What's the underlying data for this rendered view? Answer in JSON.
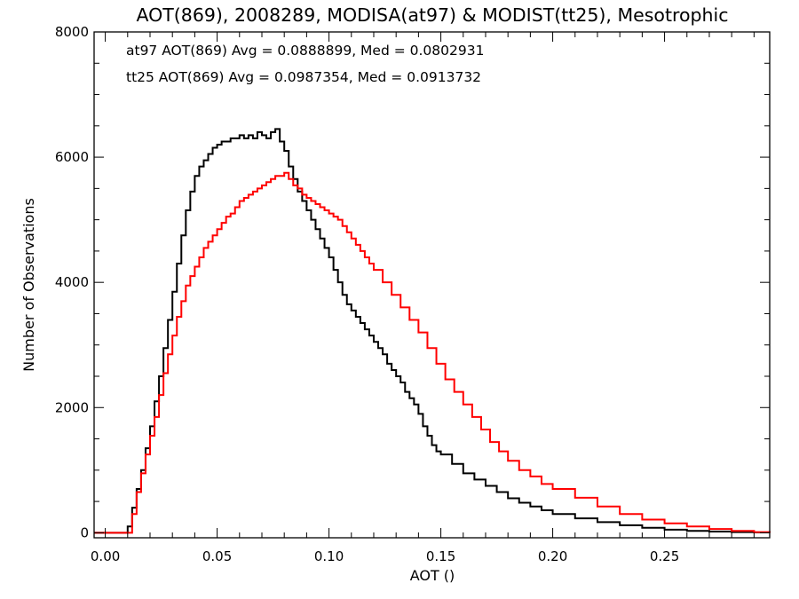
{
  "chart_data": {
    "type": "line",
    "title": "AOT(869), 2008289, MODISA(at97) & MODIST(tt25), Mesotrophic",
    "xlabel": "AOT ()",
    "ylabel": "Number of Observations",
    "xlim": [
      -0.005,
      0.297
    ],
    "ylim": [
      -80,
      8000
    ],
    "x_ticks": [
      0.0,
      0.05,
      0.1,
      0.15,
      0.2,
      0.25
    ],
    "x_tick_labels": [
      "0.00",
      "0.05",
      "0.10",
      "0.15",
      "0.20",
      "0.25"
    ],
    "y_ticks": [
      0,
      2000,
      4000,
      6000,
      8000
    ],
    "y_tick_labels": [
      "0",
      "2000",
      "4000",
      "6000",
      "8000"
    ],
    "grid": false,
    "step": true,
    "annotations": [
      {
        "text": "at97 AOT(869) Avg = 0.0888899, Med = 0.0802931",
        "color": "#000000"
      },
      {
        "text": "tt25 AOT(869) Avg = 0.0987354, Med = 0.0913732",
        "color": "#ff0000"
      }
    ],
    "series": [
      {
        "color": "#000000",
        "x": [
          -0.005,
          0.009,
          0.01,
          0.012,
          0.014,
          0.016,
          0.018,
          0.02,
          0.022,
          0.024,
          0.026,
          0.028,
          0.03,
          0.032,
          0.034,
          0.036,
          0.038,
          0.04,
          0.042,
          0.044,
          0.046,
          0.048,
          0.05,
          0.052,
          0.054,
          0.056,
          0.058,
          0.06,
          0.062,
          0.064,
          0.066,
          0.068,
          0.07,
          0.072,
          0.074,
          0.076,
          0.078,
          0.08,
          0.082,
          0.084,
          0.086,
          0.088,
          0.09,
          0.092,
          0.094,
          0.096,
          0.098,
          0.1,
          0.102,
          0.104,
          0.106,
          0.108,
          0.11,
          0.112,
          0.114,
          0.116,
          0.118,
          0.12,
          0.122,
          0.124,
          0.126,
          0.128,
          0.13,
          0.132,
          0.134,
          0.136,
          0.138,
          0.14,
          0.142,
          0.144,
          0.146,
          0.148,
          0.15,
          0.155,
          0.16,
          0.165,
          0.17,
          0.175,
          0.18,
          0.185,
          0.19,
          0.195,
          0.2,
          0.21,
          0.22,
          0.23,
          0.24,
          0.25,
          0.26,
          0.27,
          0.28,
          0.29,
          0.297
        ],
        "y": [
          0,
          0,
          100,
          400,
          700,
          1000,
          1350,
          1700,
          2100,
          2500,
          2950,
          3400,
          3850,
          4300,
          4750,
          5150,
          5450,
          5700,
          5850,
          5950,
          6050,
          6150,
          6200,
          6250,
          6250,
          6300,
          6300,
          6350,
          6300,
          6350,
          6300,
          6400,
          6350,
          6300,
          6400,
          6450,
          6250,
          6100,
          5850,
          5650,
          5450,
          5300,
          5150,
          5000,
          4850,
          4700,
          4550,
          4400,
          4200,
          4000,
          3800,
          3650,
          3550,
          3450,
          3350,
          3250,
          3150,
          3050,
          2950,
          2850,
          2700,
          2600,
          2500,
          2400,
          2250,
          2150,
          2050,
          1900,
          1700,
          1550,
          1400,
          1300,
          1250,
          1100,
          950,
          850,
          750,
          650,
          550,
          480,
          420,
          360,
          300,
          230,
          170,
          120,
          80,
          50,
          30,
          20,
          10,
          5,
          0
        ]
      },
      {
        "color": "#ff0000",
        "x": [
          -0.005,
          0.01,
          0.012,
          0.014,
          0.016,
          0.018,
          0.02,
          0.022,
          0.024,
          0.026,
          0.028,
          0.03,
          0.032,
          0.034,
          0.036,
          0.038,
          0.04,
          0.042,
          0.044,
          0.046,
          0.048,
          0.05,
          0.052,
          0.054,
          0.056,
          0.058,
          0.06,
          0.062,
          0.064,
          0.066,
          0.068,
          0.07,
          0.072,
          0.074,
          0.076,
          0.078,
          0.08,
          0.082,
          0.084,
          0.086,
          0.088,
          0.09,
          0.092,
          0.094,
          0.096,
          0.098,
          0.1,
          0.102,
          0.104,
          0.106,
          0.108,
          0.11,
          0.112,
          0.114,
          0.116,
          0.118,
          0.12,
          0.124,
          0.128,
          0.132,
          0.136,
          0.14,
          0.144,
          0.148,
          0.152,
          0.156,
          0.16,
          0.164,
          0.168,
          0.172,
          0.176,
          0.18,
          0.185,
          0.19,
          0.195,
          0.2,
          0.21,
          0.22,
          0.23,
          0.24,
          0.25,
          0.26,
          0.27,
          0.28,
          0.29,
          0.297
        ],
        "y": [
          0,
          0,
          300,
          650,
          950,
          1250,
          1550,
          1850,
          2200,
          2550,
          2850,
          3150,
          3450,
          3700,
          3950,
          4100,
          4250,
          4400,
          4550,
          4650,
          4750,
          4850,
          4950,
          5050,
          5100,
          5200,
          5300,
          5350,
          5400,
          5450,
          5500,
          5550,
          5600,
          5650,
          5700,
          5700,
          5750,
          5650,
          5550,
          5500,
          5400,
          5350,
          5300,
          5250,
          5200,
          5150,
          5100,
          5050,
          5000,
          4900,
          4800,
          4700,
          4600,
          4500,
          4400,
          4300,
          4200,
          4000,
          3800,
          3600,
          3400,
          3200,
          2950,
          2700,
          2450,
          2250,
          2050,
          1850,
          1650,
          1450,
          1300,
          1150,
          1000,
          900,
          780,
          700,
          560,
          420,
          300,
          210,
          150,
          100,
          60,
          30,
          10,
          0
        ]
      }
    ]
  }
}
